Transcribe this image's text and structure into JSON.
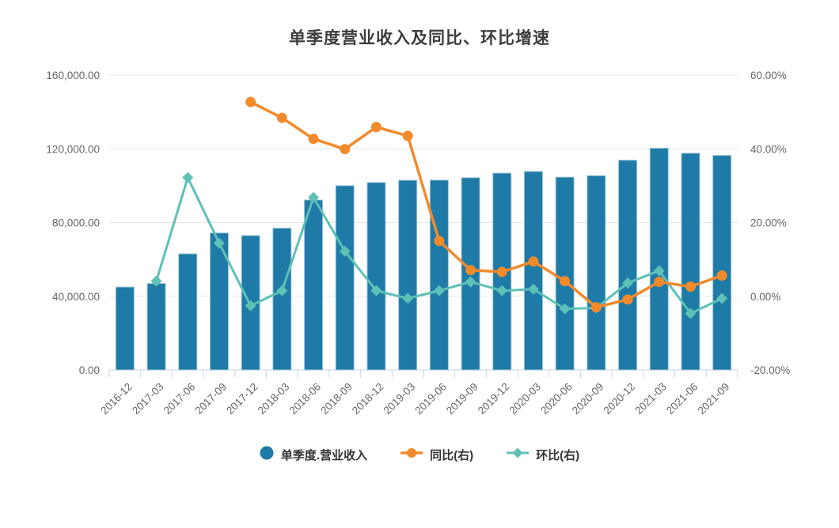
{
  "chart_data": {
    "type": "combo",
    "title": "单季度营业收入及同比、环比增速",
    "categories": [
      "2016-12",
      "2017-03",
      "2017-06",
      "2017-09",
      "2017-12",
      "2018-03",
      "2018-06",
      "2018-09",
      "2018-12",
      "2019-03",
      "2019-06",
      "2019-09",
      "2019-12",
      "2020-03",
      "2020-06",
      "2020-09",
      "2020-12",
      "2021-03",
      "2021-06",
      "2021-09"
    ],
    "series": [
      {
        "name": "单季度.营业收入",
        "type": "bar",
        "axis": "left",
        "color": "#1e7aa6",
        "border_color": "#9cc3d7",
        "values": [
          45000,
          46900,
          63000,
          74300,
          72900,
          76900,
          92200,
          100000,
          101700,
          102900,
          103000,
          104300,
          106800,
          107700,
          104600,
          105400,
          113800,
          120300,
          117600,
          116400
        ]
      },
      {
        "name": "同比(右)",
        "type": "line",
        "marker": "circle",
        "axis": "right",
        "color": "#f28a2c",
        "values": [
          null,
          null,
          null,
          null,
          52.7,
          48.4,
          42.7,
          39.9,
          45.9,
          43.5,
          15.0,
          7.1,
          6.6,
          9.4,
          4.1,
          -3.0,
          -0.9,
          3.9,
          2.6,
          5.6
        ]
      },
      {
        "name": "环比(右)",
        "type": "line",
        "marker": "diamond",
        "axis": "right",
        "color": "#5ec1b6",
        "values": [
          null,
          4.1,
          32.2,
          14.4,
          -2.6,
          1.5,
          26.8,
          12.2,
          1.5,
          -0.6,
          1.5,
          3.9,
          1.5,
          1.9,
          -3.4,
          -3.2,
          3.6,
          6.9,
          -4.7,
          -0.6
        ]
      }
    ],
    "y_left": {
      "min": 0,
      "max": 160000,
      "tick_labels_top_down": [
        "160,000.00",
        "120,000.00",
        "80,000.00",
        "40,000.00",
        "0.00"
      ]
    },
    "y_right": {
      "min": -20,
      "max": 60,
      "tick_labels_top_down": [
        "60.00%",
        "40.00%",
        "20.00%",
        "0.00%",
        "-20.00%"
      ]
    },
    "grid": true,
    "legend_position": "bottom",
    "gridline_color": "#e6e6e6",
    "axisline_color": "#ccd6eb"
  },
  "legend": {
    "items": [
      {
        "label": "单季度.营业收入"
      },
      {
        "label": "同比(右)"
      },
      {
        "label": "环比(右)"
      }
    ]
  }
}
